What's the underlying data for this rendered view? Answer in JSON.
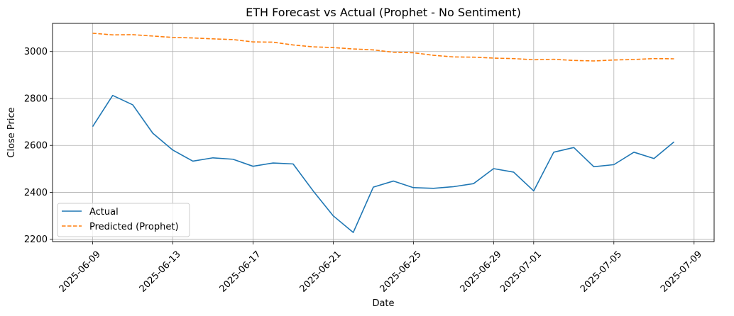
{
  "chart_data": {
    "type": "line",
    "title": "ETH Forecast vs Actual (Prophet - No Sentiment)",
    "xlabel": "Date",
    "ylabel": "Close Price",
    "x": [
      "2025-06-09",
      "2025-06-10",
      "2025-06-11",
      "2025-06-12",
      "2025-06-13",
      "2025-06-14",
      "2025-06-15",
      "2025-06-16",
      "2025-06-17",
      "2025-06-18",
      "2025-06-19",
      "2025-06-20",
      "2025-06-21",
      "2025-06-22",
      "2025-06-23",
      "2025-06-24",
      "2025-06-25",
      "2025-06-26",
      "2025-06-27",
      "2025-06-28",
      "2025-06-29",
      "2025-06-30",
      "2025-07-01",
      "2025-07-02",
      "2025-07-03",
      "2025-07-04",
      "2025-07-05",
      "2025-07-06",
      "2025-07-07",
      "2025-07-08"
    ],
    "series": [
      {
        "name": "Actual",
        "color": "#1f77b4",
        "linestyle": "solid",
        "values": [
          2680,
          2813,
          2773,
          2652,
          2580,
          2533,
          2547,
          2541,
          2511,
          2525,
          2521,
          2406,
          2300,
          2229,
          2422,
          2448,
          2420,
          2417,
          2424,
          2437,
          2501,
          2486,
          2406,
          2571,
          2591,
          2509,
          2518,
          2571,
          2544,
          2615
        ]
      },
      {
        "name": "Predicted (Prophet)",
        "color": "#ff7f0e",
        "linestyle": "dashed",
        "values": [
          3078,
          3071,
          3072,
          3066,
          3060,
          3058,
          3054,
          3051,
          3041,
          3040,
          3028,
          3020,
          3017,
          3011,
          3007,
          2997,
          2995,
          2984,
          2977,
          2976,
          2972,
          2970,
          2965,
          2967,
          2962,
          2960,
          2964,
          2966,
          2970,
          2969
        ]
      }
    ],
    "xlim": [
      "2025-06-07",
      "2025-07-10"
    ],
    "ylim": [
      2190,
      3120
    ],
    "xticks": [
      "2025-06-09",
      "2025-06-13",
      "2025-06-17",
      "2025-06-21",
      "2025-06-25",
      "2025-06-29",
      "2025-07-01",
      "2025-07-05",
      "2025-07-09"
    ],
    "yticks": [
      2200,
      2400,
      2600,
      2800,
      3000
    ],
    "grid": true,
    "legend_position": "lower-left"
  }
}
